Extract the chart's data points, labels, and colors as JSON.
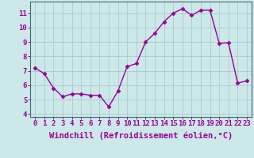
{
  "x": [
    0,
    1,
    2,
    3,
    4,
    5,
    6,
    7,
    8,
    9,
    10,
    11,
    12,
    13,
    14,
    15,
    16,
    17,
    18,
    19,
    20,
    21,
    22,
    23
  ],
  "y": [
    7.2,
    6.8,
    5.8,
    5.2,
    5.4,
    5.4,
    5.3,
    5.3,
    4.5,
    5.6,
    7.3,
    7.5,
    9.0,
    9.6,
    10.4,
    11.0,
    11.3,
    10.85,
    11.2,
    11.2,
    8.9,
    8.95,
    6.15,
    6.3
  ],
  "line_color": "#990099",
  "marker": "D",
  "marker_size": 2.5,
  "bg_color": "#cce8e8",
  "grid_color": "#aacccc",
  "xlabel": "Windchill (Refroidissement éolien,°C)",
  "xlabel_fontsize": 7.5,
  "ylim": [
    3.8,
    11.8
  ],
  "xlim": [
    -0.5,
    23.5
  ],
  "yticks": [
    4,
    5,
    6,
    7,
    8,
    9,
    10,
    11
  ],
  "xticks": [
    0,
    1,
    2,
    3,
    4,
    5,
    6,
    7,
    8,
    9,
    10,
    11,
    12,
    13,
    14,
    15,
    16,
    17,
    18,
    19,
    20,
    21,
    22,
    23
  ],
  "tick_fontsize": 6.5,
  "line_width": 1.0
}
